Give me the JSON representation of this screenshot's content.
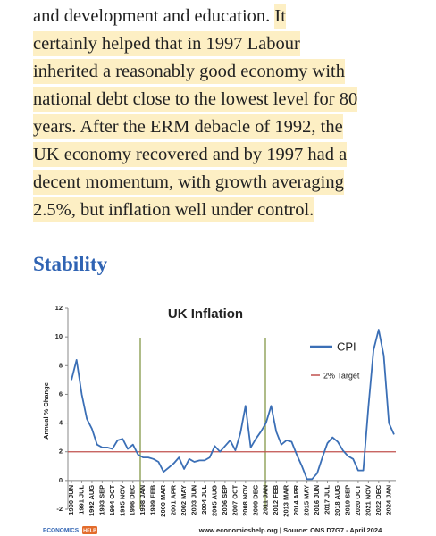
{
  "article": {
    "lead": "and development and education.",
    "highlighted_lines": [
      "It",
      "certainly helped that in 1997 Labour",
      "inherited a reasonably good economy with",
      "national debt close to the lowest level for 80",
      "years. After the ERM debacle of 1992, the",
      "UK economy recovered and by 1997 had a",
      "decent momentum, with growth averaging",
      "2.5%, but inflation well under control."
    ],
    "heading": "Stability"
  },
  "chart_data": {
    "type": "line",
    "title": "UK Inflation",
    "y_label": "Annual % Change",
    "categories": [
      "1990 JUN",
      null,
      "1991 JUL",
      null,
      "1992 AUG",
      null,
      "1993 SEP",
      null,
      "1994 OCT",
      null,
      "1995 NOV",
      null,
      "1996 DEC",
      null,
      "1998 JAN",
      null,
      "1999 FEB",
      null,
      "2000 MAR",
      null,
      "2001 APR",
      null,
      "2002 MAY",
      null,
      "2003 JUN",
      null,
      "2004 JUL",
      null,
      "2005 AUG",
      null,
      "2006 SEP",
      null,
      "2007 OCT",
      null,
      "2008 NOV",
      null,
      "2009 DEC",
      null,
      "2011 JAN",
      null,
      "2012 FEB",
      null,
      "2013 MAR",
      null,
      "2014 APR",
      null,
      "2015 MAY",
      null,
      "2016 JUN",
      null,
      "2017 JUL",
      null,
      "2018 AUG",
      null,
      "2019 SEP",
      null,
      "2020 OCT",
      null,
      "2021 NOV",
      null,
      "2022 DEC",
      null,
      "2024 JAN",
      null
    ],
    "series": [
      {
        "name": "CPI",
        "color": "#3b6fb6",
        "values": [
          7.0,
          8.4,
          6.0,
          4.3,
          3.6,
          2.5,
          2.3,
          2.3,
          2.2,
          2.8,
          2.9,
          2.2,
          2.5,
          1.8,
          1.6,
          1.6,
          1.5,
          1.3,
          0.6,
          0.9,
          1.2,
          1.6,
          0.8,
          1.5,
          1.3,
          1.4,
          1.4,
          1.6,
          2.4,
          2.0,
          2.4,
          2.8,
          2.1,
          3.3,
          5.2,
          2.3,
          2.9,
          3.4,
          4.0,
          5.2,
          3.4,
          2.5,
          2.8,
          2.7,
          1.8,
          1.0,
          0.1,
          0.1,
          0.5,
          1.6,
          2.6,
          3.0,
          2.7,
          2.1,
          1.7,
          1.5,
          0.7,
          0.7,
          5.1,
          9.1,
          10.5,
          8.7,
          4.0,
          3.2
        ]
      }
    ],
    "target": {
      "name": "2% Target",
      "value": 2,
      "color": "#c0504d"
    },
    "ylim": [
      -2,
      12
    ],
    "yticks": [
      -2,
      0,
      2,
      4,
      6,
      8,
      10,
      12
    ],
    "footer": {
      "logo": "ECONOMICS",
      "logo_badge": "HELP",
      "source": "www.economicshelp.org | Source: ONS D7G7 - April 2024"
    }
  }
}
